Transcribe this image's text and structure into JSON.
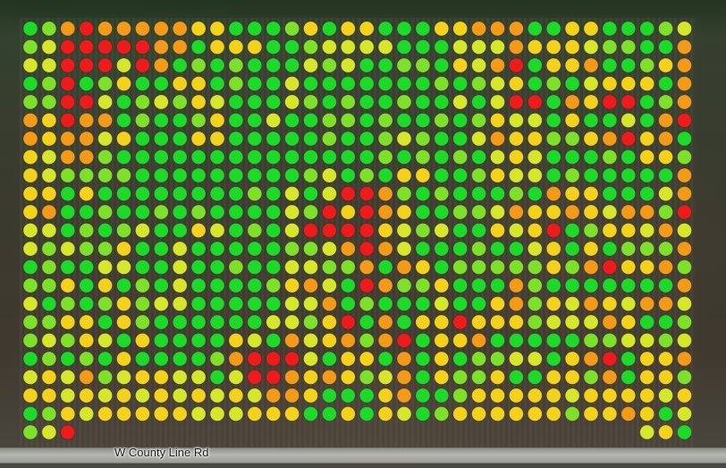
{
  "map": {
    "road_label": "W County Line Rd",
    "legend_colors": {
      "G": "#1ed82a",
      "L": "#7fe02c",
      "Y": "#d6e62d",
      "U": "#f2d21c",
      "O": "#f29a1a",
      "R": "#ec1c1c"
    },
    "zone_rows": [
      "GLOROOOOOUUGGGLUGUUGGGUUOOOGGUUGGGLY",
      "LYRRRRROOGUUUGGLYYYYGGGYYYOUUUYLLGGO",
      "YYRRRYROGLGLGGGYLYGGLLGUYORGUUOGGLUO",
      "GLRGLUGGUUGLGGYGGGGGGGLGLYUGLGYUUUGO",
      "LLRRYGLYLUYGGGYLGLGGLGGYGYRRGOURRGLO",
      "OUROOGLGGLUGGYGGLLGLGGLGLUYYGUGGYGOR",
      "OUOOYUGGGUUGGGGGLGGLYLGGYOUULLUORUOG",
      "UYOOLGGGGGGGGGGGGGGLGLGLGYUYGGGLGUUL",
      "UYLLLLGGGGGGGGGLYGLGUUGGLUYYGLGGGGGO",
      "UUGUGGGGGGGGLGYGYRROLGLGGGLGOUUGGGYO",
      "UOGGLGGLGLGGGGYLRUROUGGLLYOUUOUYOOLR",
      "YYGLGLYGGUYGLGYRRRRUYLYGGUYURGLUUYOY",
      "YLYLLUGGYGGGGGLLYOROYGGGLGGYUGUGLLLO",
      "GLGGYYGGYGGLGGYYLLOGOUGLLLLLULORUUOL",
      "LLUGUGLGYGGGGLUOYGROLLUGGGOLGGGGGGGO",
      "YGLGLULYYGGGGGYYOGLGGGYGGUOLUYOUYOOY",
      "LLUUGULGGGGGGYYLURGOGUURUUULYYYOUGGL",
      "LYLUYGUGGGGUYGOYUOLORGUUOGGGGGLLYYLY",
      "GLGLGUGGGGLORRRYGUUGOGUGLLYYGUORGUUO",
      "YUYOLYUUYYGYRROUOULYOGULLUGGUULOGUUL",
      "UUYUYUYUYUYUYOOUGGGUOGGLUUUUUYUUUUYU",
      "GLUYUUUUUYYYUUUGGUGUYGLUUUUUULUUOUGY",
      "LYRGGGGGGGGGGGGGGGGGGGGGGGGGGGGGOYUG"
    ],
    "visible_points_last_row": [
      0,
      1,
      2,
      33,
      34,
      35
    ]
  }
}
